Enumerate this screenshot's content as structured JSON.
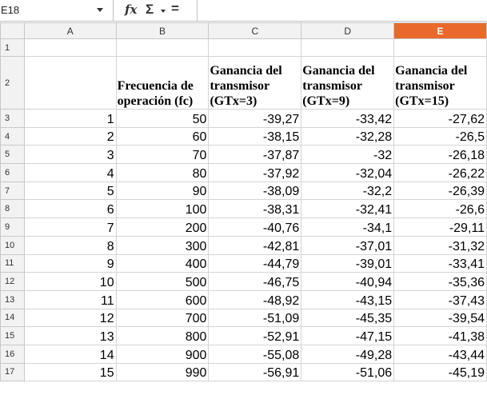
{
  "formula_bar": {
    "name_box": "E18",
    "fx_symbol": "fx",
    "sigma_symbol": "Σ",
    "equals_symbol": "=",
    "formula_value": ""
  },
  "columns": [
    "A",
    "B",
    "C",
    "D",
    "E"
  ],
  "selected_column": "E",
  "row_numbers": [
    "1",
    "2",
    "3",
    "4",
    "5",
    "6",
    "7",
    "8",
    "9",
    "10",
    "11",
    "12",
    "13",
    "14",
    "15",
    "16",
    "17"
  ],
  "headers": {
    "b": "Frecuencia de operación (fc)",
    "c": "Ganancia del transmisor (GTx=3)",
    "d": "Ganancia del transmisor (GTx=9)",
    "e": "Ganancia del transmisor (GTx=15)"
  },
  "rows": [
    {
      "a": "1",
      "b": "50",
      "c": "-39,27",
      "d": "-33,42",
      "e": "-27,62"
    },
    {
      "a": "2",
      "b": "60",
      "c": "-38,15",
      "d": "-32,28",
      "e": "-26,5"
    },
    {
      "a": "3",
      "b": "70",
      "c": "-37,87",
      "d": "-32",
      "e": "-26,18"
    },
    {
      "a": "4",
      "b": "80",
      "c": "-37,92",
      "d": "-32,04",
      "e": "-26,22"
    },
    {
      "a": "5",
      "b": "90",
      "c": "-38,09",
      "d": "-32,2",
      "e": "-26,39"
    },
    {
      "a": "6",
      "b": "100",
      "c": "-38,31",
      "d": "-32,41",
      "e": "-26,6"
    },
    {
      "a": "7",
      "b": "200",
      "c": "-40,76",
      "d": "-34,1",
      "e": "-29,11"
    },
    {
      "a": "8",
      "b": "300",
      "c": "-42,81",
      "d": "-37,01",
      "e": "-31,32"
    },
    {
      "a": "9",
      "b": "400",
      "c": "-44,79",
      "d": "-39,01",
      "e": "-33,41"
    },
    {
      "a": "10",
      "b": "500",
      "c": "-46,75",
      "d": "-40,94",
      "e": "-35,36"
    },
    {
      "a": "11",
      "b": "600",
      "c": "-48,92",
      "d": "-43,15",
      "e": "-37,43"
    },
    {
      "a": "12",
      "b": "700",
      "c": "-51,09",
      "d": "-45,35",
      "e": "-39,54"
    },
    {
      "a": "13",
      "b": "800",
      "c": "-52,91",
      "d": "-47,15",
      "e": "-41,38"
    },
    {
      "a": "14",
      "b": "900",
      "c": "-55,08",
      "d": "-49,28",
      "e": "-43,44"
    },
    {
      "a": "15",
      "b": "990",
      "c": "-56,91",
      "d": "-51,06",
      "e": "-45,19"
    }
  ],
  "colors": {
    "selected_header": "#e9692c",
    "header_bg": "#f2f2f2",
    "gridline": "#d4d4d4"
  }
}
